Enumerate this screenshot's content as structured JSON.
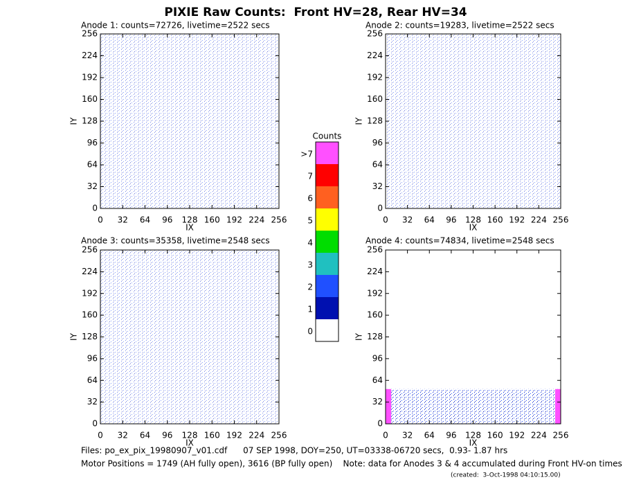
{
  "title": "PIXIE Raw Counts:  Front HV=28, Rear HV=34",
  "chart_data": [
    {
      "type": "heatmap",
      "title": "Anode 1: counts=72726, livetime=2522 secs",
      "xlabel": "IX",
      "ylabel": "IY",
      "xlim": [
        0,
        256
      ],
      "ylim": [
        0,
        256
      ],
      "xticks": [
        0,
        32,
        64,
        96,
        128,
        160,
        192,
        224,
        256
      ],
      "yticks": [
        0,
        32,
        64,
        96,
        128,
        160,
        192,
        224,
        256
      ]
    },
    {
      "type": "heatmap",
      "title": "Anode 2: counts=19283, livetime=2522 secs",
      "xlabel": "IX",
      "ylabel": "IY",
      "xlim": [
        0,
        256
      ],
      "ylim": [
        0,
        256
      ],
      "xticks": [
        0,
        32,
        64,
        96,
        128,
        160,
        192,
        224,
        256
      ],
      "yticks": [
        0,
        32,
        64,
        96,
        128,
        160,
        192,
        224,
        256
      ]
    },
    {
      "type": "heatmap",
      "title": "Anode 3: counts=35358, livetime=2548 secs",
      "xlabel": "IX",
      "ylabel": "IY",
      "xlim": [
        0,
        256
      ],
      "ylim": [
        0,
        256
      ],
      "xticks": [
        0,
        32,
        64,
        96,
        128,
        160,
        192,
        224,
        256
      ],
      "yticks": [
        0,
        32,
        64,
        96,
        128,
        160,
        192,
        224,
        256
      ]
    },
    {
      "type": "heatmap",
      "title": "Anode 4: counts=74834, livetime=2548 secs",
      "xlabel": "IX",
      "ylabel": "IY",
      "xlim": [
        0,
        256
      ],
      "ylim": [
        0,
        256
      ],
      "xticks": [
        0,
        32,
        64,
        96,
        128,
        160,
        192,
        224,
        256
      ],
      "yticks": [
        0,
        32,
        64,
        96,
        128,
        160,
        192,
        224,
        256
      ]
    }
  ],
  "colorbar": {
    "title": "Counts",
    "categories": [
      "0",
      "1",
      "2",
      "3",
      "4",
      "5",
      "6",
      "7",
      ">7"
    ],
    "colors": [
      "#ffffff",
      "#0010b0",
      "#2050ff",
      "#20c0c0",
      "#00dd00",
      "#ffff00",
      "#ff6020",
      "#ff0000",
      "#ff50ff"
    ]
  },
  "footer": [
    "Files: po_ex_pix_19980907_v01.cdf      07 SEP 1998, DOY=250, UT=03338-06720 secs,  0.93- 1.87 hrs",
    "Motor Positions = 1749 (AH fully open), 3616 (BP fully open)    Note: data for Anodes 3 & 4 accumulated during Front HV-on times",
    "(created:  3-Oct-1998 04:10:15.00)"
  ]
}
